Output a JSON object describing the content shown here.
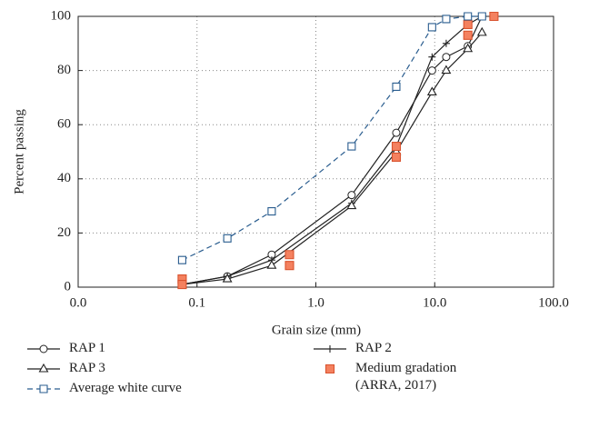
{
  "chart_data": {
    "type": "line",
    "x_label": "Grain size (mm)",
    "y_label": "Percent passing",
    "xscale": "log",
    "xlim": [
      0.01,
      100
    ],
    "xticks": [
      {
        "value": 0.01,
        "label": "0.0"
      },
      0.1,
      {
        "value": 1,
        "label": "1.0"
      },
      {
        "value": 10,
        "label": "10.0"
      },
      {
        "value": 100,
        "label": "100.0"
      }
    ],
    "ylim": [
      0,
      100
    ],
    "yticks": [
      0,
      20,
      40,
      60,
      80,
      100
    ],
    "grid": true,
    "legend": "bottom",
    "series": [
      {
        "name": "RAP 1",
        "color": "#222222",
        "marker": "circle",
        "mode": "lines+markers",
        "line_style": "solid",
        "x": [
          0.075,
          0.18,
          0.425,
          2.0,
          4.75,
          9.5,
          12.5,
          19,
          25
        ],
        "values": [
          1,
          4,
          12,
          34,
          57,
          80,
          85,
          89,
          100
        ]
      },
      {
        "name": "RAP 2",
        "color": "#222222",
        "marker": "plus",
        "mode": "lines+markers",
        "line_style": "solid",
        "x": [
          0.075,
          0.18,
          0.425,
          2.0,
          4.75,
          9.5,
          12.5,
          19,
          25
        ],
        "values": [
          1,
          4,
          10,
          31,
          52,
          85,
          90,
          97,
          100
        ]
      },
      {
        "name": "RAP 3",
        "color": "#222222",
        "marker": "triangle",
        "mode": "lines+markers",
        "line_style": "solid",
        "x": [
          0.075,
          0.18,
          0.425,
          2.0,
          4.75,
          9.5,
          12.5,
          19,
          25
        ],
        "values": [
          1,
          3,
          8,
          30,
          50,
          72,
          80,
          88,
          94
        ]
      },
      {
        "name": "Medium gradation (ARRA, 2017)",
        "color": "#f4815f",
        "marker": "filled-square",
        "mode": "markers",
        "line_style": "none",
        "x": [
          0.075,
          0.075,
          0.6,
          0.6,
          4.75,
          4.75,
          19,
          19,
          31.5
        ],
        "values": [
          3,
          1,
          12,
          8,
          52,
          48,
          97,
          93,
          100
        ]
      },
      {
        "name": "Average white curve",
        "color": "#2a5d8f",
        "marker": "square",
        "mode": "lines+markers",
        "line_style": "dashed",
        "x": [
          0.075,
          0.18,
          0.425,
          2.0,
          4.75,
          9.5,
          12.5,
          19,
          25
        ],
        "values": [
          10,
          18,
          28,
          52,
          74,
          96,
          99,
          100,
          100
        ]
      }
    ]
  }
}
